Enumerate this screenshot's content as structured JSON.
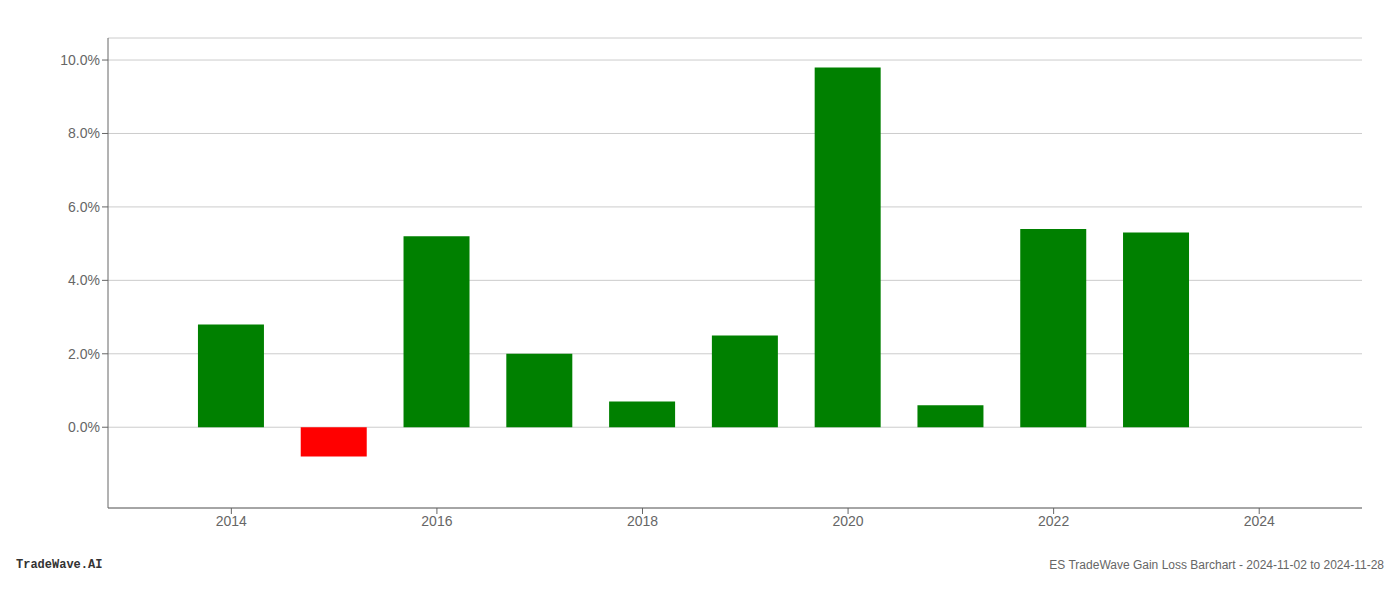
{
  "chart_data": {
    "type": "bar",
    "x": [
      2014,
      2015,
      2016,
      2017,
      2018,
      2019,
      2020,
      2021,
      2022,
      2023
    ],
    "values": [
      0.028,
      -0.008,
      0.052,
      0.02,
      0.007,
      0.025,
      0.098,
      0.006,
      0.054,
      0.053
    ],
    "colors": [
      "#008000",
      "#ff0000",
      "#008000",
      "#008000",
      "#008000",
      "#008000",
      "#008000",
      "#008000",
      "#008000",
      "#008000"
    ],
    "xlim": [
      2012.8,
      2025.0
    ],
    "xticks": [
      2014,
      2016,
      2018,
      2020,
      2022,
      2024
    ],
    "ylim": [
      -0.022,
      0.106
    ],
    "yticks": [
      {
        "value": 0,
        "label": "0.0%"
      },
      {
        "value": 0.02,
        "label": "2.0%"
      },
      {
        "value": 0.04,
        "label": "4.0%"
      },
      {
        "value": 0.06,
        "label": "6.0%"
      },
      {
        "value": 0.08,
        "label": "8.0%"
      },
      {
        "value": 0.1,
        "label": "10.0%"
      }
    ],
    "grid": true,
    "annotations": [
      "TradeWave.AI",
      "ES TradeWave Gain Loss Barchart - 2024-11-02 to 2024-11-28"
    ]
  }
}
